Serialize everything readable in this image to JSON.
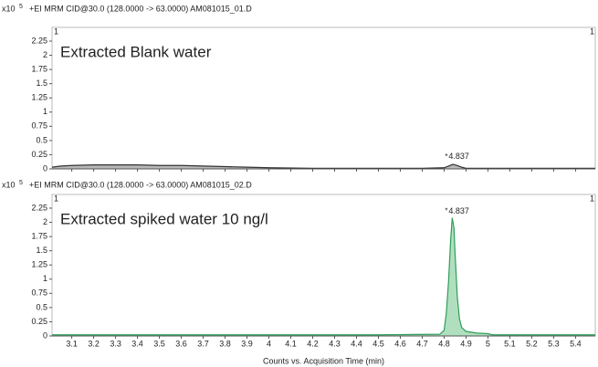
{
  "chart_data": [
    {
      "type": "line",
      "title": "+EI MRM CID@30.0 (128.0000 -> 63.0000) AM081015_01.D",
      "y_multiplier": "x10",
      "y_exponent": "5",
      "corner_label": "1",
      "annotation": "Extracted Blank water",
      "annotation_color": "#111111",
      "peak_marker": "*",
      "peak_label": "4.837",
      "peak_x": 4.837,
      "peak_y": 0.1,
      "x": [
        3.01,
        3.05,
        3.1,
        3.2,
        3.3,
        3.4,
        3.5,
        3.6,
        3.7,
        3.8,
        3.9,
        4.0,
        4.2,
        4.5,
        4.7,
        4.8,
        4.82,
        4.84,
        4.86,
        4.88,
        4.9,
        5.0,
        5.2,
        5.49
      ],
      "series": [
        {
          "name": "blank",
          "color": "#333333",
          "fill": "#9a9a9a",
          "values": [
            0.03,
            0.05,
            0.06,
            0.07,
            0.07,
            0.07,
            0.06,
            0.06,
            0.05,
            0.04,
            0.03,
            0.02,
            0.01,
            0.01,
            0.01,
            0.02,
            0.05,
            0.08,
            0.06,
            0.03,
            0.01,
            0.01,
            0.01,
            0.01
          ]
        }
      ],
      "xlim": [
        3.01,
        5.49
      ],
      "ylim": [
        0,
        2.25
      ],
      "yticks": [
        0,
        0.25,
        0.5,
        0.75,
        1,
        1.25,
        1.5,
        1.75,
        2,
        2.25
      ],
      "xticks": [
        3.1,
        3.2,
        3.3,
        3.4,
        3.5,
        3.6,
        3.7,
        3.8,
        3.9,
        4,
        4.1,
        4.2,
        4.3,
        4.4,
        4.5,
        4.6,
        4.7,
        4.8,
        4.9,
        5,
        5.1,
        5.2,
        5.3,
        5.4
      ]
    },
    {
      "type": "line",
      "title": "+EI MRM CID@30.0 (128.0000 -> 63.0000) AM081015_02.D",
      "y_multiplier": "x10",
      "y_exponent": "5",
      "corner_label": "1",
      "annotation": "Extracted spiked water 10 ng/l",
      "annotation_color": "#22a05a",
      "peak_marker": "*",
      "peak_label": "4.837",
      "peak_x": 4.837,
      "peak_y": 2.08,
      "x": [
        3.01,
        3.5,
        4.0,
        4.5,
        4.78,
        4.8,
        4.81,
        4.82,
        4.83,
        4.837,
        4.845,
        4.85,
        4.86,
        4.87,
        4.88,
        4.9,
        4.95,
        5.0,
        5.02,
        5.2,
        5.49
      ],
      "series": [
        {
          "name": "spiked",
          "color": "#2e9e5a",
          "fill": "#8fd1a4",
          "values": [
            0.02,
            0.02,
            0.02,
            0.02,
            0.03,
            0.1,
            0.4,
            0.95,
            1.7,
            2.08,
            1.9,
            1.45,
            0.7,
            0.3,
            0.15,
            0.08,
            0.05,
            0.04,
            0.02,
            0.02,
            0.02
          ]
        }
      ],
      "xlim": [
        3.01,
        5.49
      ],
      "ylim": [
        0,
        2.25
      ],
      "yticks": [
        0,
        0.25,
        0.5,
        0.75,
        1,
        1.25,
        1.5,
        1.75,
        2,
        2.25
      ],
      "xticks": [
        3.1,
        3.2,
        3.3,
        3.4,
        3.5,
        3.6,
        3.7,
        3.8,
        3.9,
        4,
        4.1,
        4.2,
        4.3,
        4.4,
        4.5,
        4.6,
        4.7,
        4.8,
        4.9,
        5,
        5.1,
        5.2,
        5.3,
        5.4
      ],
      "xlabel": "Counts vs. Acquisition Time (min)"
    }
  ]
}
